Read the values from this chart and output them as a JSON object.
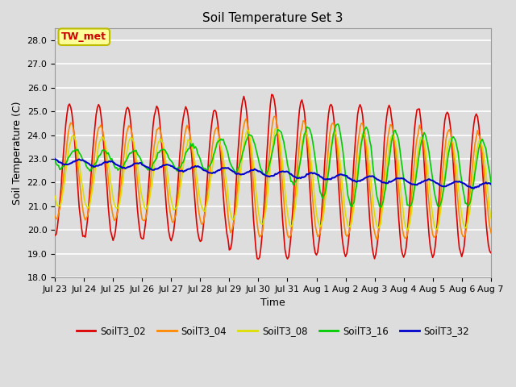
{
  "title": "Soil Temperature Set 3",
  "xlabel": "Time",
  "ylabel": "Soil Temperature (C)",
  "ylim": [
    18.0,
    28.5
  ],
  "yticks": [
    18.0,
    19.0,
    20.0,
    21.0,
    22.0,
    23.0,
    24.0,
    25.0,
    26.0,
    27.0,
    28.0
  ],
  "background_color": "#dddddd",
  "plot_bg_color": "#dddddd",
  "grid_color": "#ffffff",
  "annotation_text": "TW_met",
  "annotation_color": "#cc0000",
  "annotation_bg": "#ffff99",
  "annotation_border": "#bbbb00",
  "series": {
    "SoilT3_02": {
      "color": "#dd0000",
      "linewidth": 1.2
    },
    "SoilT3_04": {
      "color": "#ff8800",
      "linewidth": 1.2
    },
    "SoilT3_08": {
      "color": "#dddd00",
      "linewidth": 1.2
    },
    "SoilT3_16": {
      "color": "#00cc00",
      "linewidth": 1.2
    },
    "SoilT3_32": {
      "color": "#0000cc",
      "linewidth": 1.5
    }
  },
  "title_fontsize": 11,
  "axis_fontsize": 9,
  "tick_fontsize": 8
}
